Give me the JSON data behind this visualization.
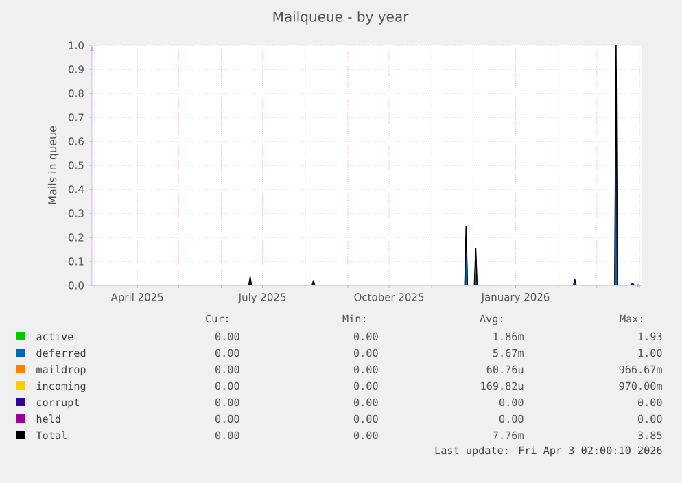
{
  "chart_data": {
    "type": "area",
    "title": "Mailqueue - by year",
    "ylabel": "Mails in queue",
    "x": [
      "2025-02-27",
      "2025-06-21",
      "2025-06-22",
      "2025-06-23",
      "2025-08-06",
      "2025-08-07",
      "2025-08-08",
      "2025-11-25",
      "2025-11-26",
      "2025-11-27",
      "2025-12-02",
      "2025-12-03",
      "2025-12-04",
      "2026-02-12",
      "2026-02-13",
      "2026-02-14",
      "2026-03-14",
      "2026-03-15",
      "2026-03-16",
      "2026-03-26",
      "2026-03-27",
      "2026-03-28",
      "2026-04-03"
    ],
    "series": [
      {
        "name": "active",
        "color": "#00cc00",
        "values": [
          null,
          null,
          null,
          null,
          null,
          null,
          null,
          null,
          null,
          null,
          null,
          null,
          null,
          null,
          null,
          null,
          null,
          null,
          null,
          null,
          null,
          null,
          null
        ]
      },
      {
        "name": "deferred",
        "color": "#0066b3",
        "values": [
          0,
          0,
          0.03,
          0,
          0,
          0.015,
          0,
          0,
          0.23,
          0,
          0,
          0.14,
          0,
          0,
          0.02,
          0,
          0,
          0.9,
          0,
          0,
          0.008,
          0,
          0
        ]
      },
      {
        "name": "maildrop",
        "color": "#ff8000",
        "values": [
          null,
          null,
          null,
          null,
          null,
          null,
          null,
          null,
          null,
          null,
          null,
          null,
          null,
          null,
          null,
          null,
          null,
          null,
          null,
          null,
          null,
          null,
          null
        ]
      },
      {
        "name": "incoming",
        "color": "#ffcc00",
        "values": [
          null,
          null,
          null,
          null,
          null,
          null,
          null,
          null,
          null,
          null,
          null,
          null,
          null,
          null,
          null,
          null,
          null,
          null,
          null,
          null,
          null,
          null,
          null
        ]
      },
      {
        "name": "corrupt",
        "color": "#330099",
        "values": [
          null,
          null,
          null,
          null,
          null,
          null,
          null,
          null,
          null,
          null,
          null,
          null,
          null,
          null,
          null,
          null,
          null,
          null,
          null,
          null,
          null,
          null,
          null
        ]
      },
      {
        "name": "held",
        "color": "#990099",
        "values": [
          null,
          null,
          null,
          null,
          null,
          null,
          null,
          null,
          null,
          null,
          null,
          null,
          null,
          null,
          null,
          null,
          null,
          null,
          null,
          null,
          null,
          null,
          null
        ]
      },
      {
        "name": "Total",
        "color": "#000000",
        "type": "line",
        "values": [
          0,
          0,
          0.035,
          0,
          0,
          0.02,
          0,
          0,
          0.245,
          0,
          0,
          0.155,
          0,
          0,
          0.025,
          0,
          0,
          1.0,
          0,
          0,
          0.01,
          0,
          0
        ]
      }
    ],
    "xlim": [
      "2025-02-27",
      "2026-04-03"
    ],
    "xticks": [
      {
        "value": "2025-03-01",
        "label": null
      },
      {
        "value": "2025-04-01",
        "label": "April 2025"
      },
      {
        "value": "2025-05-01",
        "label": null
      },
      {
        "value": "2025-06-01",
        "label": null
      },
      {
        "value": "2025-07-01",
        "label": "July 2025"
      },
      {
        "value": "2025-08-01",
        "label": null
      },
      {
        "value": "2025-09-01",
        "label": null
      },
      {
        "value": "2025-10-01",
        "label": "October 2025"
      },
      {
        "value": "2025-11-01",
        "label": null
      },
      {
        "value": "2025-12-01",
        "label": null
      },
      {
        "value": "2026-01-01",
        "label": "January 2026"
      },
      {
        "value": "2026-02-01",
        "label": null
      },
      {
        "value": "2026-03-01",
        "label": null
      },
      {
        "value": "2026-04-01",
        "label": null
      }
    ],
    "ylim": [
      0,
      1.0
    ],
    "yticks": [
      {
        "value": 0,
        "label": "0.0"
      },
      {
        "value": 0.1,
        "label": "0.1"
      },
      {
        "value": 0.2,
        "label": "0.2"
      },
      {
        "value": 0.3,
        "label": "0.3"
      },
      {
        "value": 0.4,
        "label": "0.4"
      },
      {
        "value": 0.5,
        "label": "0.5"
      },
      {
        "value": 0.6,
        "label": "0.6"
      },
      {
        "value": 0.7,
        "label": "0.7"
      },
      {
        "value": 0.8,
        "label": "0.8"
      },
      {
        "value": 0.9,
        "label": "0.9"
      },
      {
        "value": 1.0,
        "label": "1.0"
      }
    ],
    "grid": true,
    "legend": "bottom",
    "annotations": [
      "Cur:",
      "Min:",
      "Avg:",
      "Max:",
      "0.00",
      "0.00",
      "1.86m",
      "1.93",
      "0.00",
      "0.00",
      "5.67m",
      "1.00",
      "0.00",
      "0.00",
      "60.76u",
      "966.67m",
      "0.00",
      "0.00",
      "169.82u",
      "970.00m",
      "0.00",
      "0.00",
      "0.00",
      "0.00",
      "0.00",
      "0.00",
      "0.00",
      "0.00",
      "0.00",
      "0.00",
      "7.76m",
      "3.85",
      "Last update: Fri Apr  3 02:00:10 2026"
    ]
  }
}
